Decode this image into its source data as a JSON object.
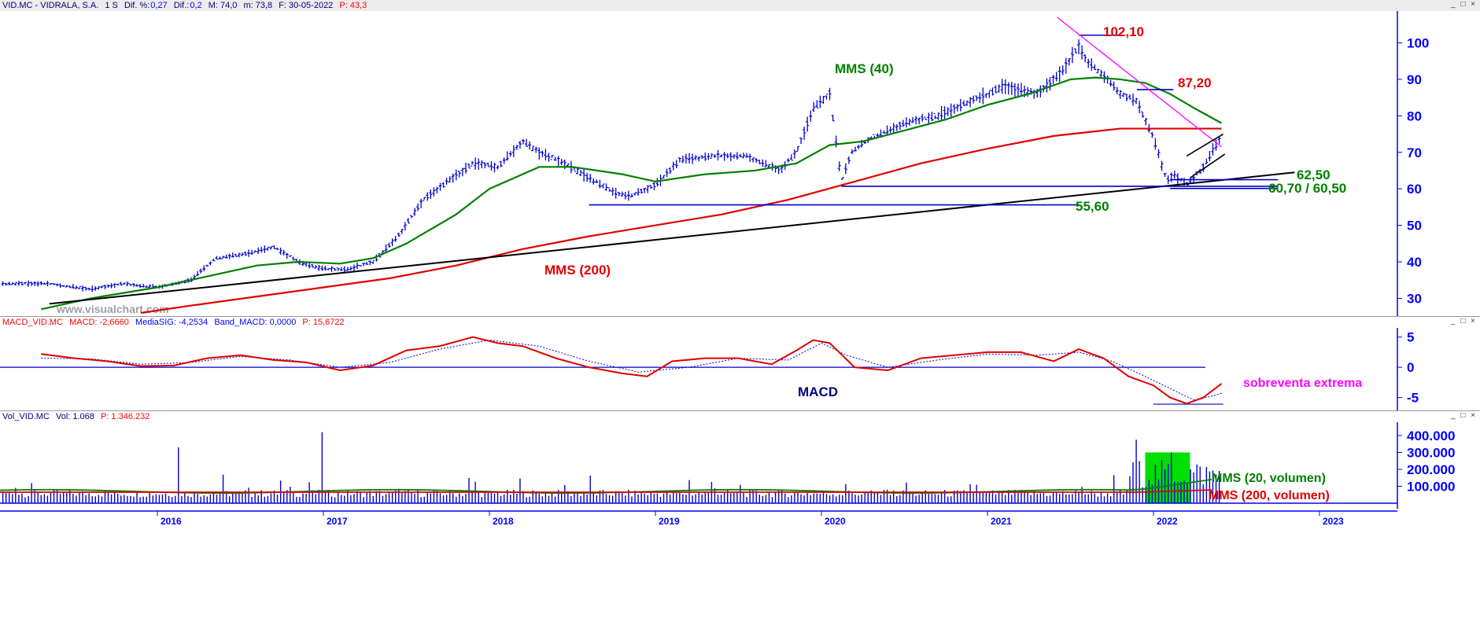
{
  "colors": {
    "price": "#0000cc",
    "mms40": "#008000",
    "mms200": "#e00000",
    "support": "#0000cc",
    "trend": "#000000",
    "channel": "#ff00ff",
    "axis": "#0000ff",
    "highlight": "#00e000",
    "header_text": "#000080",
    "header_value": "#0000ff",
    "header_pval": "#ff0000"
  },
  "header": {
    "symbol": "VID.MC - VIDRALA, S.A.",
    "period": "1 S",
    "dif_pct_label": "Dif. %:",
    "dif_pct": "0,27",
    "dif_label": "Dif.:",
    "dif": "0,2",
    "max_label": "M: 74,0",
    "min_label": "m: 73,8",
    "date_label": "F: 30-05-2022",
    "p_label": "P: 43,3"
  },
  "macd_header": {
    "name": "MACD_VID.MC",
    "macd": "MACD: -2,6660",
    "signal": "MediaSIG: -4,2534",
    "band": "Band_MACD: 0,0000",
    "p": "P: 15,6722"
  },
  "vol_header": {
    "name": "Vol_VID.MC",
    "vol": "Vol: 1.068",
    "p": "P: 1.346.232"
  },
  "window_buttons": "_ □ ×",
  "watermark": "www.visualchart.com",
  "chart_data": [
    {
      "type": "line",
      "title": "",
      "x_ticks": [
        "2016",
        "2017",
        "2018",
        "2019",
        "2020",
        "2021",
        "2022",
        "2023"
      ],
      "y_ticks": [
        "30",
        "40",
        "50",
        "60",
        "70",
        "80",
        "90",
        "100"
      ],
      "ylim": [
        26,
        107
      ],
      "series": [
        {
          "name": "VID.MC",
          "x": [
            2015.35,
            2015.6,
            2015.8,
            2016.0,
            2016.2,
            2016.35,
            2016.5,
            2016.7,
            2016.85,
            2017.0,
            2017.15,
            2017.3,
            2017.45,
            2017.6,
            2017.75,
            2017.9,
            2018.05,
            2018.2,
            2018.3,
            2018.45,
            2018.6,
            2018.75,
            2018.85,
            2019.0,
            2019.15,
            2019.35,
            2019.55,
            2019.75,
            2019.85,
            2019.95,
            2020.05,
            2020.12,
            2020.18,
            2020.3,
            2020.5,
            2020.7,
            2020.9,
            2021.1,
            2021.3,
            2021.45,
            2021.55,
            2021.6,
            2021.7,
            2021.8,
            2021.9,
            2022.0,
            2022.08,
            2022.12,
            2022.2,
            2022.3,
            2022.35,
            2022.41
          ],
          "values": [
            34,
            32.5,
            34,
            33,
            35,
            41,
            42,
            44,
            40,
            38,
            38,
            40,
            47,
            57,
            62,
            67,
            66,
            73,
            70,
            67,
            63,
            59,
            58,
            61,
            68,
            69,
            69,
            65,
            70,
            82,
            86,
            62,
            70,
            74,
            78,
            80,
            84,
            88,
            86,
            92,
            99,
            95,
            91,
            86,
            84,
            74,
            62,
            64,
            61,
            66,
            70,
            74
          ]
        },
        {
          "name": "MMS (40)",
          "x": [
            2015.3,
            2015.6,
            2016.0,
            2016.3,
            2016.6,
            2016.85,
            2017.1,
            2017.3,
            2017.5,
            2017.8,
            2018.0,
            2018.3,
            2018.5,
            2018.8,
            2019.0,
            2019.3,
            2019.6,
            2019.85,
            2020.05,
            2020.25,
            2020.5,
            2020.75,
            2021.0,
            2021.25,
            2021.5,
            2021.65,
            2021.8,
            2021.95,
            2022.1,
            2022.25,
            2022.41
          ],
          "values": [
            27,
            30,
            33,
            36,
            39,
            40,
            39.5,
            41,
            45,
            53,
            60,
            66,
            66,
            64,
            62,
            64,
            65,
            67,
            72,
            73,
            76,
            79,
            83,
            86,
            90,
            90.5,
            90,
            89,
            86,
            82,
            78
          ]
        },
        {
          "name": "MMS (200)",
          "x": [
            2015.9,
            2016.2,
            2016.6,
            2017.0,
            2017.4,
            2017.8,
            2018.2,
            2018.6,
            2019.0,
            2019.4,
            2019.8,
            2020.2,
            2020.6,
            2021.0,
            2021.4,
            2021.8,
            2022.0,
            2022.2,
            2022.41
          ],
          "values": [
            26,
            28,
            30.5,
            33,
            35.5,
            39,
            43.5,
            47,
            50,
            53,
            57,
            62,
            67,
            71,
            74.5,
            76.5,
            76.5,
            76.5,
            76.5
          ]
        }
      ],
      "annotations": [
        {
          "text": "102,10",
          "value": 102.1
        },
        {
          "text": "87,20",
          "value": 87.2
        },
        {
          "text": "62,50",
          "value": 62.5
        },
        {
          "text": "60,70 / 60,50",
          "value": 60.6
        },
        {
          "text": "55,60",
          "value": 55.6
        },
        {
          "text": "MMS (40)"
        },
        {
          "text": "MMS (200)"
        }
      ]
    },
    {
      "type": "line",
      "title": "",
      "y_ticks": [
        "5",
        "0",
        "-5"
      ],
      "ylim": [
        -7,
        6
      ],
      "series": [
        {
          "name": "MACD",
          "x": [
            2015.3,
            2015.5,
            2015.7,
            2015.9,
            2016.1,
            2016.3,
            2016.5,
            2016.7,
            2016.9,
            2017.1,
            2017.3,
            2017.5,
            2017.7,
            2017.9,
            2018.05,
            2018.2,
            2018.4,
            2018.6,
            2018.8,
            2018.95,
            2019.1,
            2019.3,
            2019.5,
            2019.7,
            2019.85,
            2019.95,
            2020.05,
            2020.2,
            2020.4,
            2020.6,
            2020.8,
            2021.0,
            2021.2,
            2021.4,
            2021.55,
            2021.7,
            2021.85,
            2022.0,
            2022.1,
            2022.2,
            2022.3,
            2022.41
          ],
          "values": [
            2.2,
            1.5,
            1,
            0.2,
            0.3,
            1.5,
            2,
            1.2,
            0.8,
            -0.5,
            0.3,
            2.8,
            3.5,
            5,
            4,
            3.5,
            1.5,
            0,
            -1,
            -1.5,
            1,
            1.5,
            1.5,
            0.5,
            2.8,
            4.5,
            4,
            0,
            -0.5,
            1.5,
            2,
            2.5,
            2.5,
            1,
            3,
            1.5,
            -1.5,
            -3,
            -5,
            -6,
            -5,
            -2.7
          ]
        },
        {
          "name": "MediaSIG",
          "x": [
            2015.3,
            2015.6,
            2015.9,
            2016.2,
            2016.5,
            2016.8,
            2017.1,
            2017.4,
            2017.7,
            2018.0,
            2018.3,
            2018.6,
            2018.9,
            2019.2,
            2019.5,
            2019.8,
            2020.0,
            2020.15,
            2020.4,
            2020.7,
            2021.0,
            2021.3,
            2021.55,
            2021.75,
            2021.95,
            2022.1,
            2022.25,
            2022.41
          ],
          "values": [
            1.5,
            1.4,
            0.5,
            0.8,
            1.8,
            1.2,
            0,
            0.8,
            3,
            4.5,
            3.5,
            1,
            -0.8,
            0,
            1.5,
            1.2,
            4,
            2,
            0,
            1.2,
            2.2,
            2,
            2.5,
            1,
            -1.5,
            -3.5,
            -5.5,
            -4.3
          ]
        }
      ],
      "annotations": [
        {
          "text": "MACD"
        },
        {
          "text": "sobreventa extrema"
        }
      ]
    },
    {
      "type": "bar",
      "title": "",
      "y_ticks": [
        "100.000",
        "200.000",
        "300.000",
        "400.000"
      ],
      "ylim": [
        0,
        460000
      ],
      "series": [
        {
          "name": "Vol",
          "peaks": [
            {
              "x": 2016.12,
              "value": 330000
            },
            {
              "x": 2017.0,
              "value": 420000
            },
            {
              "x": 2022.1,
              "value": 300000
            }
          ]
        },
        {
          "name": "MMS (20, volumen)"
        },
        {
          "name": "MMS (200, volumen)"
        }
      ]
    }
  ]
}
